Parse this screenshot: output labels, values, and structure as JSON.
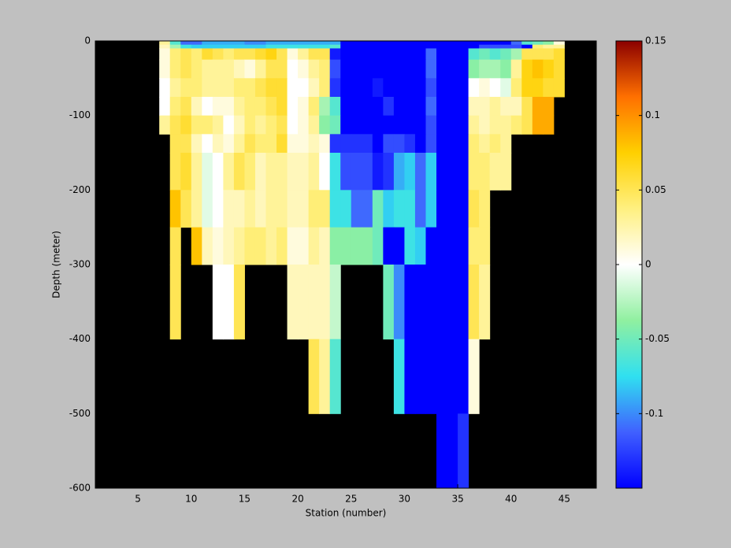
{
  "chart_data": {
    "type": "heatmap",
    "xlabel": "Station (number)",
    "ylabel": "Depth (meter)",
    "xlim": [
      1,
      48
    ],
    "ylim": [
      -600,
      0
    ],
    "xticks": [
      5,
      10,
      15,
      20,
      25,
      30,
      35,
      40,
      45
    ],
    "yticks": [
      0,
      -100,
      -200,
      -300,
      -400,
      -500,
      -600
    ],
    "clim": [
      -0.15,
      0.15
    ],
    "cticks": [
      0.15,
      0.1,
      0.05,
      0,
      -0.05,
      -0.1
    ],
    "colormap": [
      "#0000ff",
      "#4060ff",
      "#30e0f0",
      "#90f0a0",
      "#ffffff",
      "#fff080",
      "#ffd000",
      "#ff7000",
      "#8b0000"
    ],
    "background": "#000000",
    "x_edges": [
      7,
      8,
      9,
      10,
      11,
      12,
      13,
      14,
      15,
      16,
      17,
      18,
      19,
      20,
      21,
      22,
      23,
      24,
      25,
      26,
      27,
      28,
      29,
      30,
      31,
      32,
      33,
      34,
      35,
      36,
      37,
      38,
      39,
      40,
      41,
      42,
      43,
      44,
      45
    ],
    "y_edges": [
      0,
      -5,
      -10,
      -25,
      -50,
      -75,
      -100,
      -125,
      -150,
      -200,
      -250,
      -300,
      -400,
      -500,
      -600
    ],
    "z": [
      [
        0.03,
        -0.06,
        -0.11,
        -0.11,
        -0.09,
        -0.09,
        -0.09,
        -0.09,
        -0.1,
        -0.1,
        -0.09,
        -0.09,
        -0.09,
        -0.09,
        -0.09,
        -0.09,
        -0.09,
        -0.15,
        -0.15,
        -0.15,
        -0.15,
        -0.15,
        -0.15,
        -0.15,
        -0.15,
        -0.15,
        -0.15,
        -0.15,
        -0.15,
        -0.15,
        -0.15,
        -0.15,
        -0.15,
        -0.11,
        -0.06,
        -0.05,
        -0.04,
        0.01
      ],
      [
        0.02,
        -0.03,
        -0.07,
        -0.08,
        -0.08,
        -0.08,
        -0.08,
        -0.08,
        -0.08,
        -0.08,
        -0.07,
        -0.07,
        -0.07,
        -0.07,
        -0.07,
        -0.07,
        -0.06,
        -0.15,
        -0.15,
        -0.15,
        -0.15,
        -0.15,
        -0.15,
        -0.15,
        -0.15,
        -0.15,
        -0.15,
        -0.15,
        -0.15,
        -0.15,
        -0.12,
        -0.12,
        -0.12,
        -0.12,
        -0.15,
        0.04,
        0.03,
        0.03
      ],
      [
        0.01,
        0.04,
        0.05,
        0.04,
        0.06,
        0.05,
        0.04,
        0.05,
        0.05,
        0.06,
        0.07,
        0.05,
        0.01,
        0.03,
        0.05,
        0.05,
        -0.14,
        -0.15,
        -0.15,
        -0.15,
        -0.15,
        -0.15,
        -0.15,
        -0.15,
        -0.15,
        -0.11,
        -0.15,
        -0.15,
        -0.15,
        -0.06,
        -0.05,
        -0.06,
        -0.05,
        -0.03,
        0.05,
        0.05,
        0.05,
        0.06
      ],
      [
        0.01,
        0.04,
        0.05,
        0.04,
        0.03,
        0.03,
        0.03,
        0.02,
        0.01,
        0.03,
        0.05,
        0.05,
        0.0,
        0.01,
        0.03,
        0.04,
        -0.12,
        -0.15,
        -0.15,
        -0.15,
        -0.15,
        -0.15,
        -0.15,
        -0.15,
        -0.15,
        -0.11,
        -0.15,
        -0.15,
        -0.15,
        -0.04,
        -0.03,
        -0.03,
        -0.04,
        0.03,
        0.07,
        0.08,
        0.07,
        0.06
      ],
      [
        0.0,
        0.03,
        0.04,
        0.04,
        0.03,
        0.03,
        0.03,
        0.04,
        0.04,
        0.05,
        0.06,
        0.06,
        0.0,
        0.0,
        0.02,
        0.04,
        -0.13,
        -0.15,
        -0.15,
        -0.15,
        -0.14,
        -0.15,
        -0.15,
        -0.15,
        -0.15,
        -0.12,
        -0.15,
        -0.15,
        -0.15,
        0.0,
        0.01,
        0.0,
        -0.01,
        0.04,
        0.07,
        0.07,
        0.06,
        0.06
      ],
      [
        0.0,
        0.04,
        0.05,
        0.02,
        0.0,
        0.01,
        0.01,
        0.03,
        0.04,
        0.04,
        0.05,
        0.06,
        0.0,
        0.01,
        0.04,
        -0.03,
        -0.06,
        -0.15,
        -0.15,
        -0.15,
        -0.15,
        -0.13,
        -0.15,
        -0.15,
        -0.15,
        -0.11,
        -0.15,
        -0.15,
        -0.15,
        0.02,
        0.02,
        0.03,
        0.02,
        0.02,
        0.05,
        0.09,
        0.09,
        null
      ],
      [
        0.03,
        0.05,
        0.06,
        0.04,
        0.04,
        0.03,
        0.0,
        0.02,
        0.04,
        0.03,
        0.04,
        0.05,
        0.0,
        0.01,
        0.03,
        -0.04,
        -0.05,
        -0.15,
        -0.15,
        -0.15,
        -0.15,
        -0.15,
        -0.15,
        -0.15,
        -0.15,
        -0.12,
        -0.15,
        -0.15,
        -0.15,
        0.03,
        0.02,
        0.03,
        0.03,
        0.04,
        0.05,
        0.09,
        0.09,
        null
      ],
      [
        null,
        0.05,
        0.05,
        0.02,
        0.0,
        0.02,
        0.01,
        0.03,
        0.05,
        0.04,
        0.04,
        0.06,
        0.01,
        0.01,
        0.02,
        0.01,
        -0.13,
        -0.13,
        -0.13,
        -0.13,
        -0.15,
        -0.12,
        -0.12,
        -0.13,
        -0.15,
        -0.12,
        -0.15,
        -0.15,
        -0.15,
        0.04,
        0.03,
        0.04,
        0.03,
        null,
        null,
        null,
        null,
        null
      ],
      [
        null,
        0.05,
        0.06,
        0.03,
        -0.01,
        0.0,
        0.03,
        0.05,
        0.04,
        0.02,
        0.03,
        0.03,
        0.02,
        0.02,
        0.03,
        0.0,
        -0.07,
        -0.12,
        -0.12,
        -0.12,
        -0.14,
        -0.13,
        -0.09,
        -0.08,
        -0.11,
        -0.08,
        -0.15,
        -0.15,
        -0.15,
        0.04,
        0.04,
        0.03,
        0.03,
        null,
        null,
        null,
        null,
        null
      ],
      [
        null,
        0.08,
        0.05,
        0.03,
        -0.01,
        0.0,
        0.02,
        0.02,
        0.03,
        0.02,
        0.03,
        0.03,
        0.02,
        0.02,
        0.04,
        0.04,
        -0.07,
        -0.07,
        -0.11,
        -0.11,
        -0.05,
        -0.08,
        -0.07,
        -0.07,
        -0.11,
        -0.08,
        -0.15,
        -0.15,
        -0.15,
        0.05,
        0.04,
        null,
        null,
        null,
        null,
        null,
        null,
        null
      ],
      [
        null,
        0.05,
        null,
        0.08,
        0.02,
        0.01,
        0.02,
        0.03,
        0.04,
        0.04,
        0.03,
        0.04,
        0.01,
        0.01,
        0.03,
        0.02,
        -0.04,
        -0.04,
        -0.04,
        -0.04,
        -0.05,
        -0.15,
        -0.15,
        -0.07,
        -0.08,
        -0.15,
        -0.15,
        -0.15,
        -0.15,
        0.04,
        0.04,
        null,
        null,
        null,
        null,
        null,
        null,
        null
      ],
      [
        null,
        0.05,
        null,
        null,
        null,
        0.0,
        0.0,
        0.05,
        null,
        null,
        null,
        null,
        0.02,
        0.02,
        0.02,
        0.02,
        -0.02,
        null,
        null,
        null,
        null,
        -0.05,
        -0.1,
        -0.15,
        -0.15,
        -0.15,
        -0.15,
        -0.15,
        -0.15,
        0.05,
        0.03,
        null,
        null,
        null,
        null,
        null,
        null,
        null
      ],
      [
        null,
        null,
        null,
        null,
        null,
        null,
        null,
        null,
        null,
        null,
        null,
        null,
        null,
        null,
        0.05,
        0.03,
        -0.06,
        null,
        null,
        null,
        null,
        null,
        -0.07,
        -0.15,
        -0.15,
        -0.15,
        -0.15,
        -0.15,
        -0.15,
        0.01,
        null,
        null,
        null,
        null,
        null,
        null,
        null,
        null
      ],
      [
        null,
        null,
        null,
        null,
        null,
        null,
        null,
        null,
        null,
        null,
        null,
        null,
        null,
        null,
        null,
        null,
        null,
        null,
        null,
        null,
        null,
        null,
        null,
        null,
        null,
        null,
        -0.15,
        -0.15,
        -0.13,
        null,
        null,
        null,
        null,
        null,
        null,
        null,
        null,
        null
      ]
    ]
  }
}
